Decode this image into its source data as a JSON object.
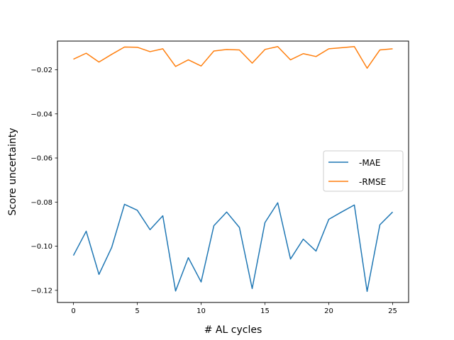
{
  "chart_data": {
    "type": "line",
    "title": "",
    "xlabel": "# AL cycles",
    "ylabel": "Score uncertainty",
    "xlim": [
      -1.25,
      26.25
    ],
    "ylim": [
      -0.1255,
      -0.007
    ],
    "xticks": [
      0,
      5,
      10,
      15,
      20,
      25
    ],
    "xtick_labels": [
      "0",
      "5",
      "10",
      "15",
      "20",
      "25"
    ],
    "yticks": [
      -0.02,
      -0.04,
      -0.06,
      -0.08,
      -0.1,
      -0.12
    ],
    "ytick_labels": [
      "−0.02",
      "−0.04",
      "−0.06",
      "−0.08",
      "−0.10",
      "−0.12"
    ],
    "grid": false,
    "legend_position": "center-right",
    "x": [
      0,
      1,
      2,
      3,
      4,
      5,
      6,
      7,
      8,
      9,
      10,
      11,
      12,
      13,
      14,
      15,
      16,
      17,
      18,
      19,
      20,
      21,
      22,
      23,
      24,
      25
    ],
    "series": [
      {
        "name": "-MAE",
        "color": "#1f77b4",
        "values": [
          -0.1042,
          -0.0932,
          -0.1128,
          -0.1005,
          -0.081,
          -0.0837,
          -0.0925,
          -0.0862,
          -0.1203,
          -0.1052,
          -0.1162,
          -0.0907,
          -0.0845,
          -0.0915,
          -0.1192,
          -0.0893,
          -0.0803,
          -0.1058,
          -0.0968,
          -0.1022,
          -0.0878,
          -0.0845,
          -0.0813,
          -0.1205,
          -0.0903,
          -0.0845
        ]
      },
      {
        "name": "-RMSE",
        "color": "#ff7f0e",
        "values": [
          -0.0152,
          -0.0125,
          -0.0165,
          -0.013,
          -0.0097,
          -0.0098,
          -0.0118,
          -0.0105,
          -0.0185,
          -0.0155,
          -0.0183,
          -0.0115,
          -0.0108,
          -0.011,
          -0.017,
          -0.0108,
          -0.0095,
          -0.0155,
          -0.0127,
          -0.014,
          -0.0105,
          -0.01,
          -0.0095,
          -0.0193,
          -0.011,
          -0.0105
        ]
      }
    ]
  }
}
